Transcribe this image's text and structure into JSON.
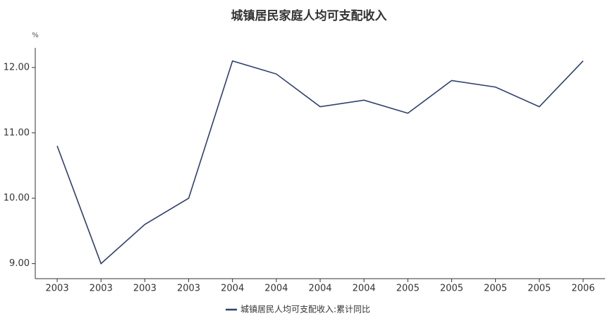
{
  "chart_data": {
    "type": "line",
    "title": "城镇居民家庭人均可支配收入",
    "y_unit": "%",
    "categories": [
      "2003",
      "2003",
      "2003",
      "2003",
      "2004",
      "2004",
      "2004",
      "2004",
      "2005",
      "2005",
      "2005",
      "2005",
      "2006"
    ],
    "series": [
      {
        "name": "城镇居民人均可支配收入:累计同比",
        "color": "#2f3f6f",
        "values": [
          10.8,
          9.0,
          9.6,
          10.0,
          12.1,
          11.9,
          11.4,
          11.5,
          11.3,
          11.8,
          11.7,
          11.4,
          12.1
        ]
      }
    ],
    "ylim": [
      8.77,
      12.3
    ],
    "yticks": [
      {
        "value": 9,
        "label": "9.00"
      },
      {
        "value": 10,
        "label": "10.00"
      },
      {
        "value": 11,
        "label": "11.00"
      },
      {
        "value": 12,
        "label": "12.00"
      }
    ],
    "grid": false,
    "legend": "bottom"
  }
}
